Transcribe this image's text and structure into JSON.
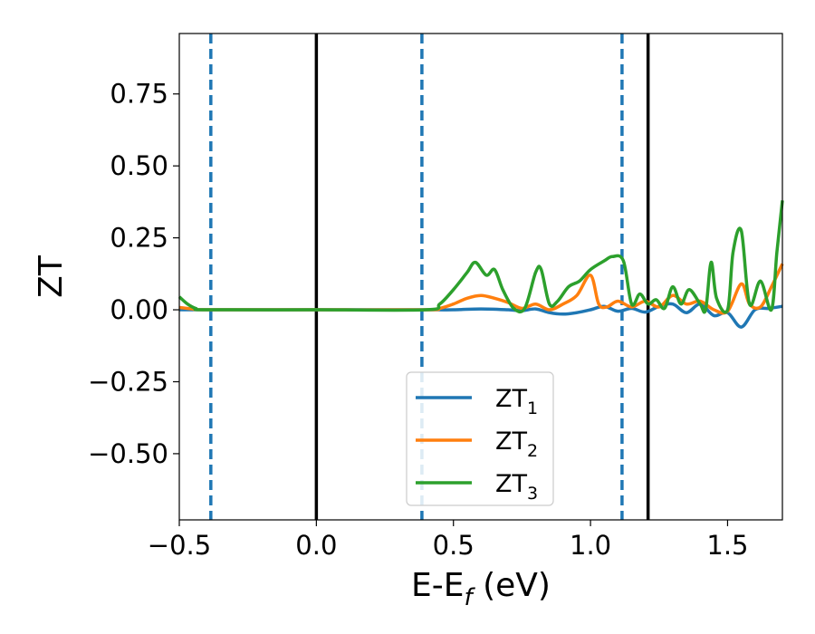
{
  "chart_data": {
    "type": "line",
    "xlabel": "E-E",
    "xlabel_sub": "f",
    "xlabel_unit": " (eV)",
    "ylabel": "ZT",
    "xlim": [
      -0.5,
      1.7
    ],
    "ylim": [
      -0.73,
      0.96
    ],
    "xticks": [
      -0.5,
      0.0,
      0.5,
      1.0,
      1.5
    ],
    "xtick_labels": [
      "−0.5",
      "0.0",
      "0.5",
      "1.0",
      "1.5"
    ],
    "yticks": [
      -0.5,
      -0.25,
      0.0,
      0.25,
      0.5,
      0.75
    ],
    "ytick_labels": [
      "−0.50",
      "−0.25",
      "0.00",
      "0.25",
      "0.50",
      "0.75"
    ],
    "grid": false,
    "legend_position": "bottom-center",
    "vlines_solid": [
      0.0,
      1.21
    ],
    "vlines_dashed": [
      -0.385,
      0.385,
      1.115
    ],
    "vline_solid_color": "#000000",
    "vline_dashed_color": "#1f77b4",
    "series": [
      {
        "name": "ZT",
        "sub": "1",
        "color": "#1f77b4",
        "x": [
          -0.5,
          -0.3,
          0.0,
          0.3,
          0.4,
          0.5,
          0.6,
          0.7,
          0.75,
          0.8,
          0.85,
          0.9,
          0.95,
          1.0,
          1.05,
          1.1,
          1.15,
          1.2,
          1.25,
          1.3,
          1.35,
          1.4,
          1.45,
          1.5,
          1.55,
          1.6,
          1.65,
          1.7
        ],
        "y": [
          0.0,
          0.0,
          0.0,
          0.0,
          0.0,
          0.0,
          0.003,
          0.0,
          -0.003,
          0.003,
          -0.01,
          -0.015,
          -0.01,
          0.0,
          0.012,
          -0.005,
          0.005,
          -0.008,
          0.012,
          0.02,
          -0.01,
          0.02,
          -0.02,
          -0.01,
          -0.06,
          0.0,
          0.005,
          0.012
        ]
      },
      {
        "name": "ZT",
        "sub": "2",
        "color": "#ff7f0e",
        "x": [
          -0.5,
          -0.45,
          -0.4,
          0.0,
          0.4,
          0.45,
          0.5,
          0.55,
          0.6,
          0.65,
          0.7,
          0.75,
          0.8,
          0.85,
          0.9,
          0.95,
          1.0,
          1.03,
          1.06,
          1.1,
          1.15,
          1.2,
          1.25,
          1.3,
          1.35,
          1.4,
          1.45,
          1.5,
          1.55,
          1.58,
          1.62,
          1.66,
          1.7
        ],
        "y": [
          0.008,
          0.003,
          0.0,
          0.0,
          0.0,
          0.005,
          0.02,
          0.04,
          0.05,
          0.04,
          0.025,
          0.005,
          0.02,
          0.0,
          0.02,
          0.05,
          0.12,
          0.02,
          0.01,
          0.03,
          0.01,
          0.03,
          0.01,
          0.05,
          0.02,
          0.03,
          0.0,
          -0.005,
          0.09,
          0.02,
          0.01,
          0.08,
          0.16
        ]
      },
      {
        "name": "ZT",
        "sub": "3",
        "color": "#2ca02c",
        "x": [
          -0.5,
          -0.47,
          -0.44,
          -0.4,
          0.0,
          0.4,
          0.45,
          0.5,
          0.55,
          0.58,
          0.62,
          0.65,
          0.68,
          0.72,
          0.76,
          0.8,
          0.82,
          0.85,
          0.88,
          0.92,
          0.96,
          1.0,
          1.05,
          1.08,
          1.12,
          1.15,
          1.18,
          1.21,
          1.24,
          1.27,
          1.3,
          1.33,
          1.36,
          1.4,
          1.42,
          1.44,
          1.46,
          1.5,
          1.52,
          1.55,
          1.58,
          1.62,
          1.66,
          1.68,
          1.7
        ],
        "y": [
          0.045,
          0.02,
          0.005,
          0.0,
          0.0,
          0.0,
          0.02,
          0.07,
          0.13,
          0.165,
          0.12,
          0.14,
          0.07,
          0.005,
          0.005,
          0.13,
          0.14,
          0.02,
          0.03,
          0.08,
          0.1,
          0.14,
          0.17,
          0.185,
          0.17,
          0.02,
          0.055,
          0.02,
          0.035,
          0.005,
          0.08,
          0.02,
          0.07,
          0.02,
          0.0,
          0.165,
          0.04,
          0.0,
          0.2,
          0.275,
          0.02,
          0.1,
          0.0,
          0.2,
          0.38
        ]
      }
    ]
  }
}
